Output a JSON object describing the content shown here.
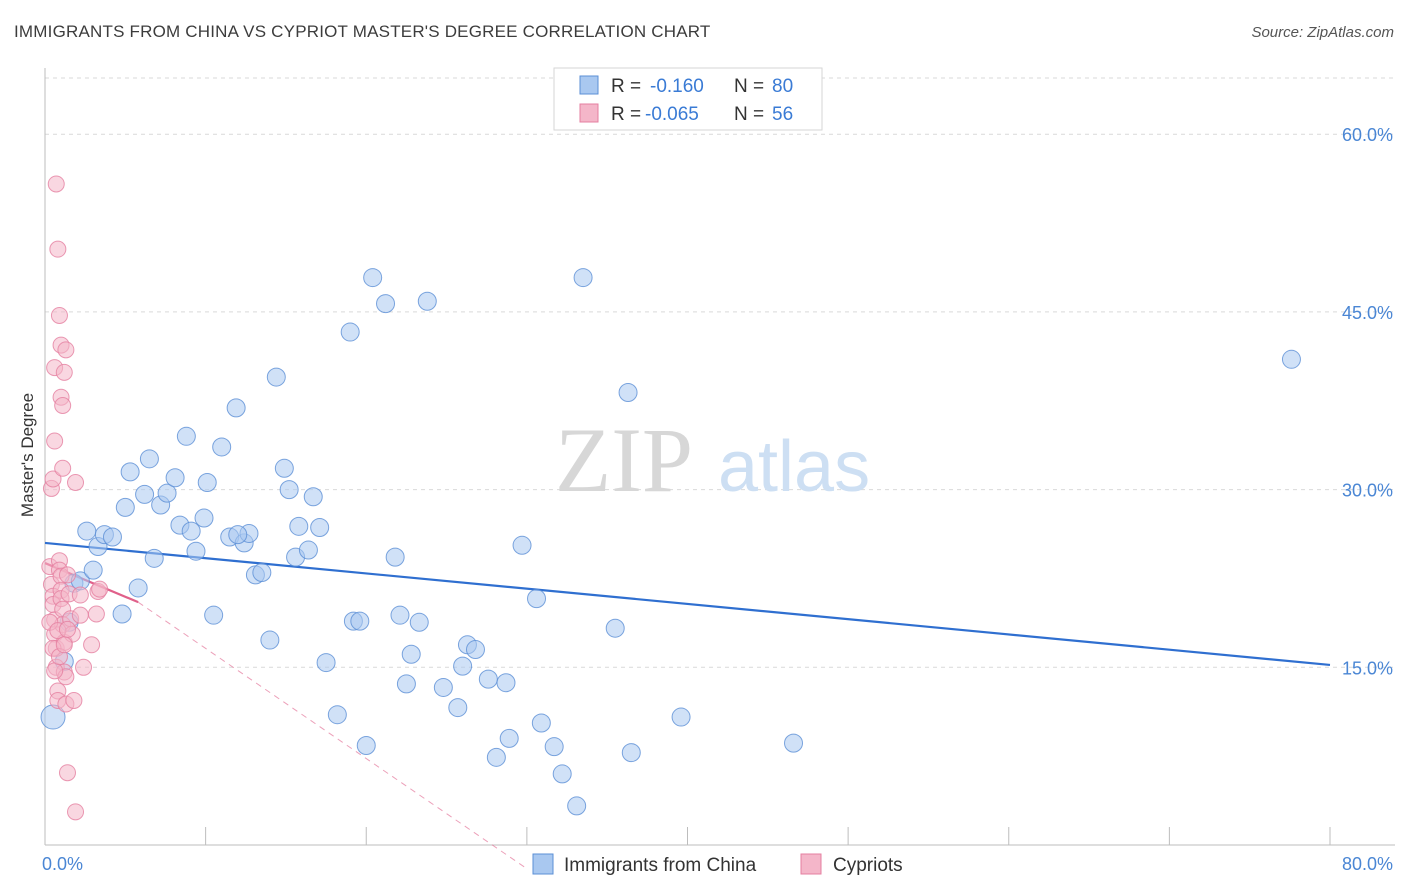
{
  "title": "IMMIGRANTS FROM CHINA VS CYPRIOT MASTER'S DEGREE CORRELATION CHART",
  "source": "Source: ZipAtlas.com",
  "watermark": {
    "zip": "ZIP",
    "atlas": "atlas"
  },
  "colors": {
    "blue_fill": "#a9c8f0",
    "blue_stroke": "#5b8fd6",
    "blue_line": "#2f6fd0",
    "pink_fill": "#f4b6c9",
    "pink_stroke": "#e57fa0",
    "pink_line": "#e0608a",
    "grid": "#d9d9d9",
    "tick_label": "#4a86d4"
  },
  "chart_data": {
    "type": "scatter",
    "title": "IMMIGRANTS FROM CHINA VS CYPRIOT MASTER'S DEGREE CORRELATION CHART",
    "xlabel": "",
    "ylabel": "Master's Degree",
    "xlim": [
      0,
      80
    ],
    "ylim": [
      0,
      65
    ],
    "x_tick_labels": [
      {
        "value": 0,
        "label": "0.0%"
      },
      {
        "value": 80,
        "label": "80.0%"
      }
    ],
    "y_tick_labels": [
      {
        "value": 15,
        "label": "15.0%"
      },
      {
        "value": 30,
        "label": "30.0%"
      },
      {
        "value": 45,
        "label": "45.0%"
      },
      {
        "value": 60,
        "label": "60.0%"
      }
    ],
    "legend": {
      "position": "top-center",
      "rows": [
        {
          "r_label": "R =",
          "r_value": "-0.160",
          "n_label": "N =",
          "n_value": "80"
        },
        {
          "r_label": "R =",
          "r_value": "-0.065",
          "n_label": "N =",
          "n_value": "56"
        }
      ]
    },
    "series": [
      {
        "name": "Immigrants from China",
        "color": "#a9c8f0",
        "trend": {
          "x": [
            0,
            80
          ],
          "y": [
            25.5,
            15.2
          ],
          "style": "solid"
        },
        "points": [
          [
            0.5,
            10.8,
            12
          ],
          [
            1.2,
            15.5,
            9
          ],
          [
            1.5,
            18.8,
            9
          ],
          [
            1.8,
            22.1,
            9
          ],
          [
            2.2,
            22.3,
            9
          ],
          [
            2.6,
            26.5,
            9
          ],
          [
            3.0,
            23.2,
            9
          ],
          [
            3.3,
            25.2,
            9
          ],
          [
            3.7,
            26.2,
            9
          ],
          [
            4.2,
            26.0,
            9
          ],
          [
            4.8,
            19.5,
            9
          ],
          [
            5.0,
            28.5,
            9
          ],
          [
            5.3,
            31.5,
            9
          ],
          [
            5.8,
            21.7,
            9
          ],
          [
            6.2,
            29.6,
            9
          ],
          [
            6.5,
            32.6,
            9
          ],
          [
            6.8,
            24.2,
            9
          ],
          [
            7.2,
            28.7,
            9
          ],
          [
            7.6,
            29.7,
            9
          ],
          [
            8.1,
            31.0,
            9
          ],
          [
            8.4,
            27.0,
            9
          ],
          [
            8.8,
            34.5,
            9
          ],
          [
            9.1,
            26.5,
            9
          ],
          [
            9.4,
            24.8,
            9
          ],
          [
            9.9,
            27.6,
            9
          ],
          [
            10.1,
            30.6,
            9
          ],
          [
            10.5,
            19.4,
            9
          ],
          [
            11.0,
            33.6,
            9
          ],
          [
            11.5,
            26.0,
            9
          ],
          [
            11.9,
            36.9,
            9
          ],
          [
            12.4,
            25.5,
            9
          ],
          [
            12.7,
            26.3,
            9
          ],
          [
            13.1,
            22.8,
            9
          ],
          [
            13.5,
            23.0,
            9
          ],
          [
            14.0,
            17.3,
            9
          ],
          [
            14.4,
            39.5,
            9
          ],
          [
            14.9,
            31.8,
            9
          ],
          [
            15.2,
            30.0,
            9
          ],
          [
            15.6,
            24.3,
            9
          ],
          [
            15.8,
            26.9,
            9
          ],
          [
            16.4,
            24.9,
            9
          ],
          [
            16.7,
            29.4,
            9
          ],
          [
            17.1,
            26.8,
            9
          ],
          [
            17.5,
            15.4,
            9
          ],
          [
            18.2,
            11.0,
            9
          ],
          [
            19.0,
            43.3,
            9
          ],
          [
            19.2,
            18.9,
            9
          ],
          [
            19.6,
            18.9,
            9
          ],
          [
            20.0,
            8.4,
            9
          ],
          [
            20.4,
            47.9,
            9
          ],
          [
            21.2,
            45.7,
            9
          ],
          [
            21.8,
            24.3,
            9
          ],
          [
            22.1,
            19.4,
            9
          ],
          [
            22.5,
            13.6,
            9
          ],
          [
            22.8,
            16.1,
            9
          ],
          [
            23.3,
            18.8,
            9
          ],
          [
            23.8,
            45.9,
            9
          ],
          [
            24.8,
            13.3,
            9
          ],
          [
            25.7,
            11.6,
            9
          ],
          [
            26.0,
            15.1,
            9
          ],
          [
            26.3,
            16.9,
            9
          ],
          [
            26.8,
            16.5,
            9
          ],
          [
            27.6,
            14.0,
            9
          ],
          [
            28.1,
            7.4,
            9
          ],
          [
            28.7,
            13.7,
            9
          ],
          [
            28.9,
            9.0,
            9
          ],
          [
            29.7,
            25.3,
            9
          ],
          [
            30.6,
            20.8,
            9
          ],
          [
            30.9,
            10.3,
            9
          ],
          [
            31.7,
            8.3,
            9
          ],
          [
            32.2,
            6.0,
            9
          ],
          [
            33.1,
            3.3,
            9
          ],
          [
            33.5,
            47.9,
            9
          ],
          [
            35.5,
            18.3,
            9
          ],
          [
            36.3,
            38.2,
            9
          ],
          [
            36.5,
            7.8,
            9
          ],
          [
            39.6,
            10.8,
            9
          ],
          [
            46.6,
            8.6,
            9
          ],
          [
            77.6,
            41.0,
            9
          ],
          [
            12.0,
            26.2,
            9
          ]
        ]
      },
      {
        "name": "Cypriots",
        "color": "#f4b6c9",
        "trend": {
          "x": [
            0,
            5.8
          ],
          "y": [
            23.8,
            20.5
          ],
          "style": "solid",
          "extended": {
            "x": [
              5.8,
              30
            ],
            "y": [
              20.5,
              -2
            ]
          }
        },
        "points": [
          [
            0.3,
            23.5
          ],
          [
            0.4,
            22.0
          ],
          [
            0.5,
            21.0
          ],
          [
            0.5,
            20.3
          ],
          [
            0.6,
            19.0
          ],
          [
            0.6,
            17.8
          ],
          [
            0.7,
            16.6
          ],
          [
            0.7,
            15.0
          ],
          [
            0.8,
            13.0
          ],
          [
            0.8,
            12.2
          ],
          [
            0.9,
            24.0
          ],
          [
            0.9,
            23.2
          ],
          [
            1.0,
            22.7
          ],
          [
            1.0,
            21.5
          ],
          [
            1.0,
            20.8
          ],
          [
            1.1,
            19.9
          ],
          [
            1.1,
            18.6
          ],
          [
            1.2,
            17.1
          ],
          [
            1.2,
            14.6
          ],
          [
            1.3,
            14.2
          ],
          [
            1.3,
            11.9
          ],
          [
            0.4,
            30.1
          ],
          [
            0.5,
            30.9
          ],
          [
            0.6,
            40.3
          ],
          [
            0.6,
            34.1
          ],
          [
            0.7,
            55.8
          ],
          [
            0.8,
            50.3
          ],
          [
            0.9,
            44.7
          ],
          [
            1.0,
            42.2
          ],
          [
            1.0,
            37.8
          ],
          [
            1.1,
            31.8
          ],
          [
            1.1,
            37.1
          ],
          [
            1.2,
            39.9
          ],
          [
            1.3,
            41.8
          ],
          [
            1.4,
            6.1
          ],
          [
            1.4,
            22.8
          ],
          [
            1.5,
            21.2
          ],
          [
            1.6,
            19.1
          ],
          [
            1.7,
            17.8
          ],
          [
            1.8,
            12.2
          ],
          [
            1.9,
            30.6
          ],
          [
            1.9,
            2.8
          ],
          [
            2.2,
            21.1
          ],
          [
            2.2,
            19.4
          ],
          [
            2.4,
            15.0
          ],
          [
            2.9,
            16.9
          ],
          [
            3.2,
            19.5
          ],
          [
            3.3,
            21.4
          ],
          [
            3.4,
            21.6
          ],
          [
            0.3,
            18.8
          ],
          [
            0.5,
            16.6
          ],
          [
            0.6,
            14.7
          ],
          [
            0.8,
            18.1
          ],
          [
            0.9,
            15.9
          ],
          [
            1.2,
            16.9
          ],
          [
            1.4,
            18.2
          ]
        ]
      }
    ]
  },
  "bottom_legend": [
    {
      "label": "Immigrants from China"
    },
    {
      "label": "Cypriots"
    }
  ]
}
